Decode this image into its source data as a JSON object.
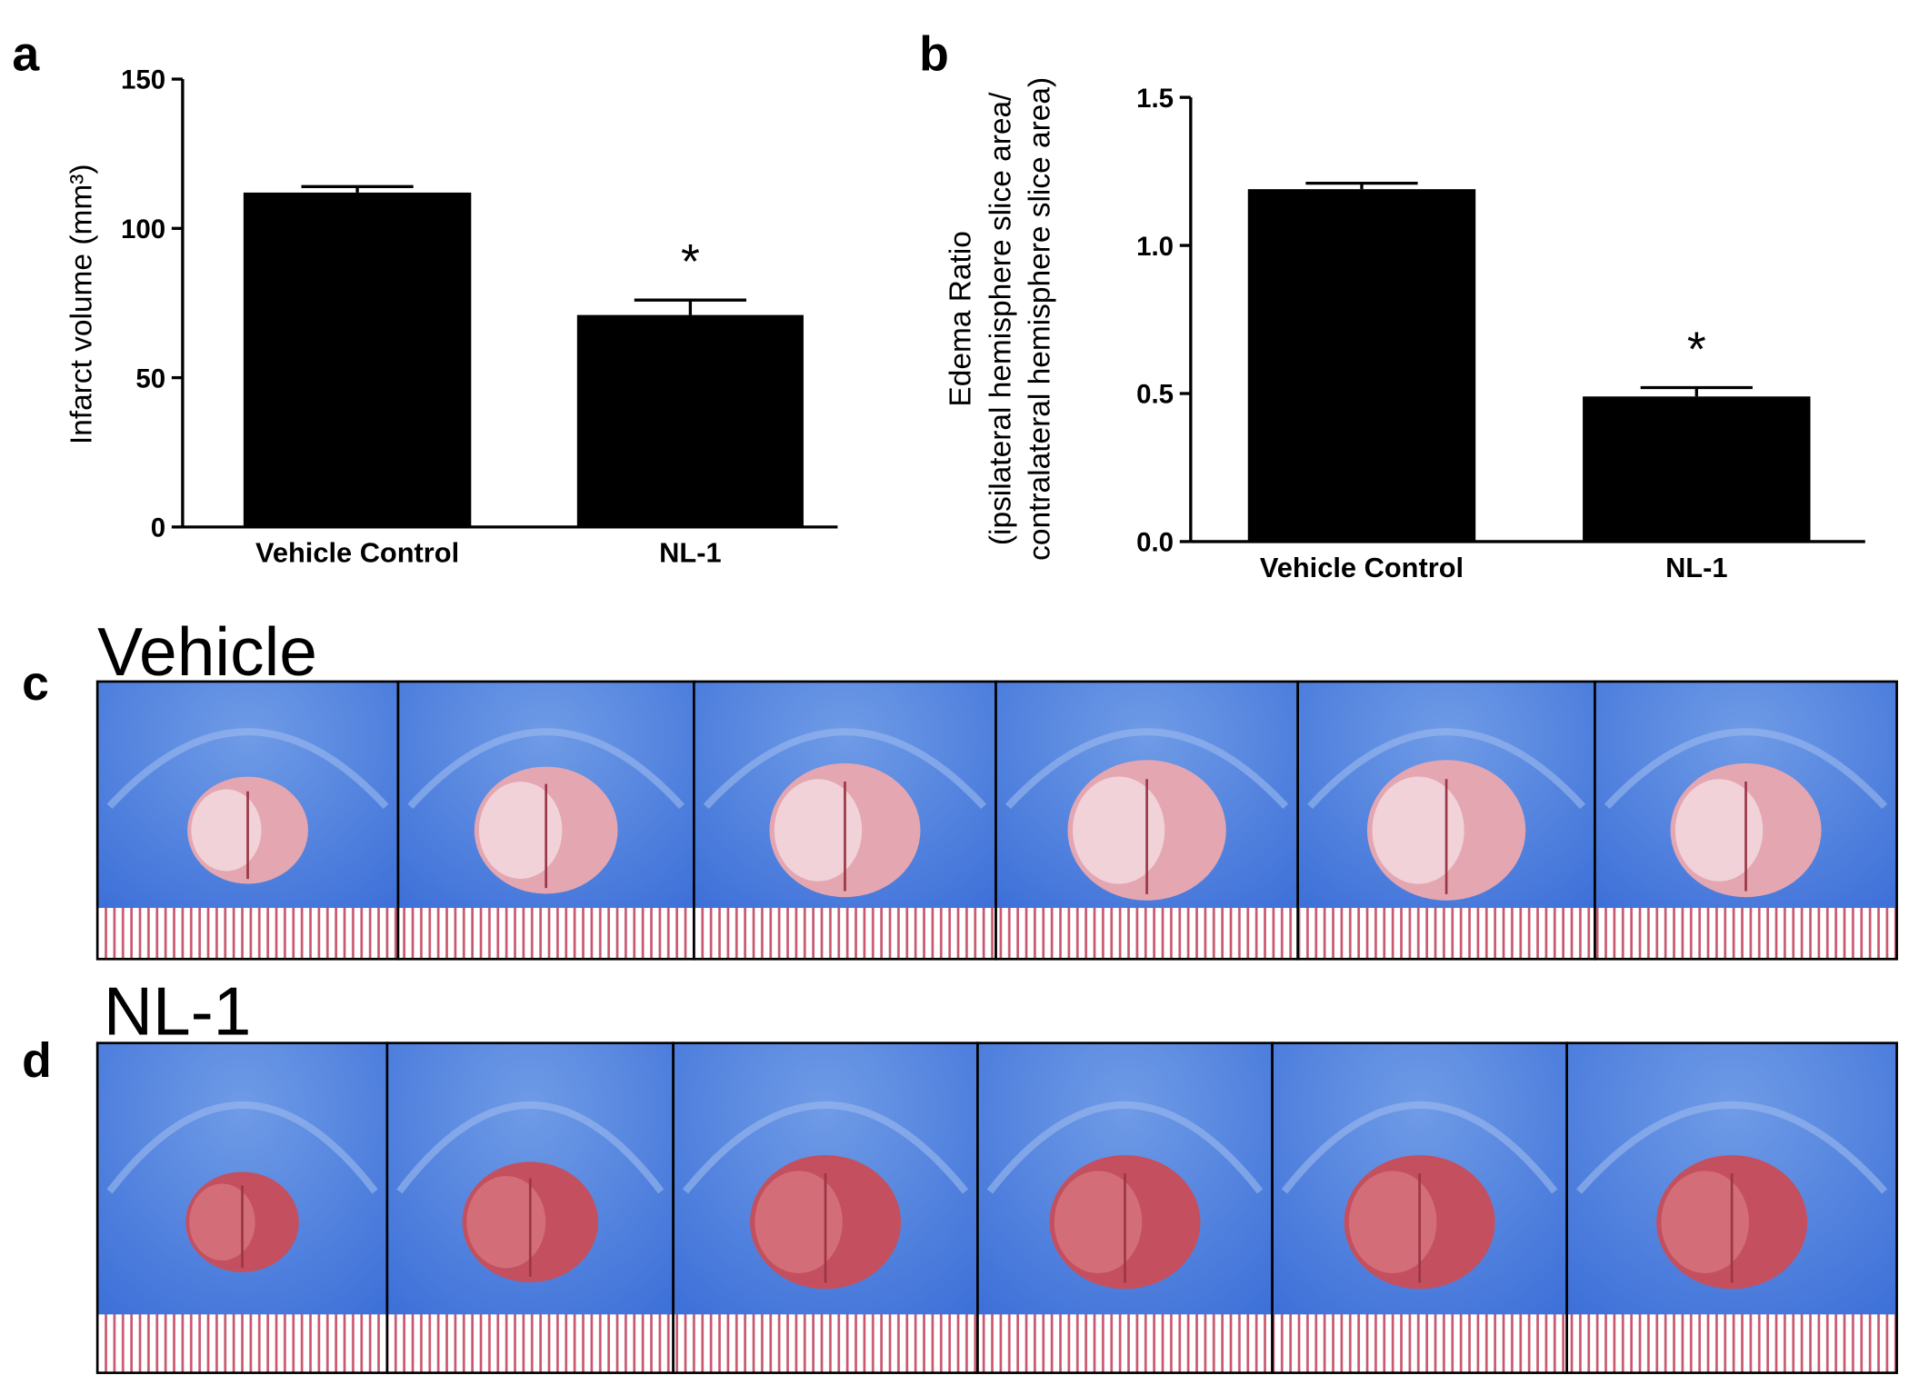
{
  "chart_data": [
    {
      "type": "bar",
      "panel_label": "a",
      "y_label": "Infarct volume (mm³)",
      "categories": [
        "Vehicle Control",
        "NL-1"
      ],
      "values": [
        112,
        71
      ],
      "errors": [
        2,
        5
      ],
      "annotations": [
        null,
        "*"
      ],
      "color": "#000000",
      "ylim": [
        0,
        150
      ],
      "yticks": [
        0,
        50,
        100,
        150
      ]
    },
    {
      "type": "bar",
      "panel_label": "b",
      "y_label": [
        "Edema Ratio",
        "(ipsilateral hemisphere slice area/",
        "contralateral hemisphere slice area)"
      ],
      "categories": [
        "Vehicle Control",
        "NL-1"
      ],
      "values": [
        1.19,
        0.49
      ],
      "errors": [
        0.02,
        0.03
      ],
      "annotations": [
        null,
        "*"
      ],
      "color": "#000000",
      "ylim": [
        0,
        1.5
      ],
      "yticks": [
        {
          "value": 0,
          "label": "0.0"
        },
        0.5,
        {
          "value": 1,
          "label": "1.0"
        },
        1.5
      ]
    }
  ],
  "photo_panels": [
    {
      "panel_label": "c",
      "heading": "Vehicle"
    },
    {
      "panel_label": "d",
      "heading": "NL-1"
    }
  ]
}
